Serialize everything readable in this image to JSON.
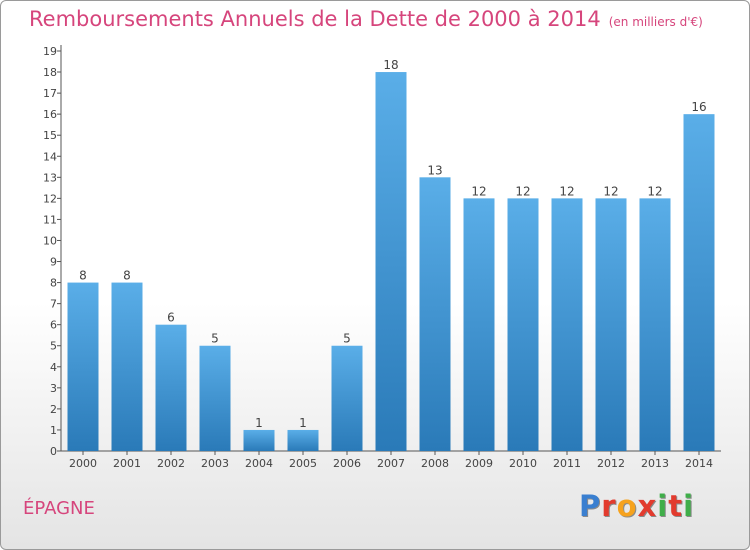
{
  "header": {
    "title": "Remboursements Annuels de la Dette de 2000 à 2014",
    "subtitle": "(en milliers d'€)"
  },
  "footer": {
    "commune": "ÉPAGNE",
    "logo": {
      "text": "Proxiti",
      "letter_colors": [
        "#3a7fd0",
        "#e23b2e",
        "#f6a21d",
        "#e23b2e",
        "#3fae49",
        "#e23b2e",
        "#3fae49"
      ]
    }
  },
  "colors": {
    "title": "#d6457c",
    "bar_top": "#5aaee8",
    "bar_bottom": "#2a7ab8",
    "axis": "#555555",
    "label": "#444444"
  },
  "chart_data": {
    "type": "bar",
    "title": "Remboursements Annuels de la Dette de 2000 à 2014",
    "subtitle": "(en milliers d'€)",
    "xlabel": "",
    "ylabel": "",
    "categories": [
      "2000",
      "2001",
      "2002",
      "2003",
      "2004",
      "2005",
      "2006",
      "2007",
      "2008",
      "2009",
      "2010",
      "2011",
      "2012",
      "2013",
      "2014"
    ],
    "values": [
      8,
      8,
      6,
      5,
      1,
      1,
      5,
      18,
      13,
      12,
      12,
      12,
      12,
      12,
      16
    ],
    "ylim": [
      0,
      19
    ],
    "yticks": [
      0,
      1,
      2,
      3,
      4,
      5,
      6,
      7,
      8,
      9,
      10,
      11,
      12,
      13,
      14,
      15,
      16,
      17,
      18,
      19
    ],
    "grid": false,
    "legend": "none"
  }
}
